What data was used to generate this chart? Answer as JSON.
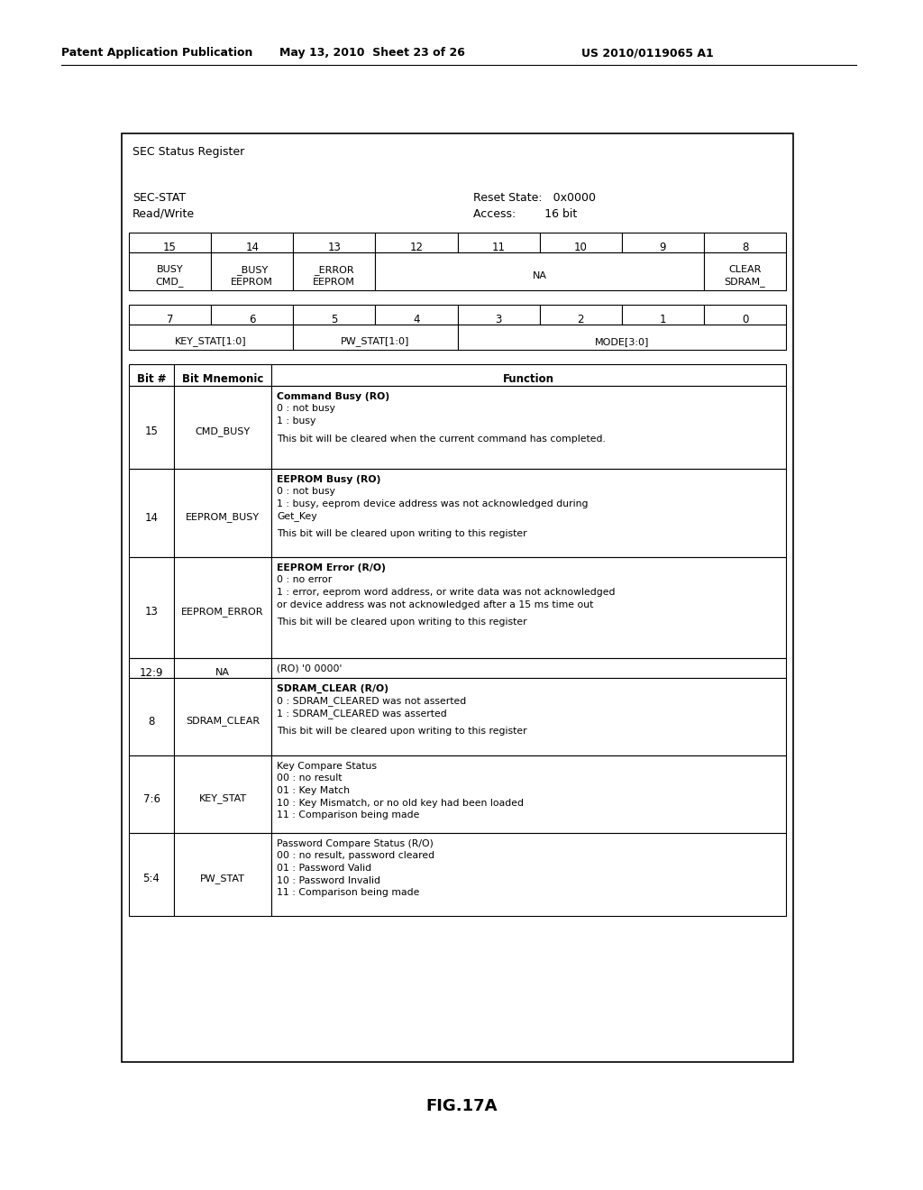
{
  "header_left": "Patent Application Publication",
  "header_middle": "May 13, 2010  Sheet 23 of 26",
  "header_right": "US 2010/0119065 A1",
  "register_title": "SEC Status Register",
  "reg_name": "SEC-STAT",
  "reg_type": "Read/Write",
  "reset_state_label": "Reset State:",
  "reset_state_value": "0x0000",
  "access_label": "Access:",
  "access_value": "16 bit",
  "bit_row1": [
    "15",
    "14",
    "13",
    "12",
    "11",
    "10",
    "9",
    "8"
  ],
  "bit_row2": [
    "7",
    "6",
    "5",
    "4",
    "3",
    "2",
    "1",
    "0"
  ],
  "name_row2": [
    "KEY_STAT[1:0]",
    "PW_STAT[1:0]",
    "MODE[3:0]"
  ],
  "name_row2_spans": [
    2,
    2,
    4
  ],
  "table_headers": [
    "Bit #",
    "Bit Mnemonic",
    "Function"
  ],
  "table_rows": [
    {
      "bit": "15",
      "mnemonic": "CMD_BUSY",
      "function_lines": [
        [
          "Command Busy (RO)",
          true
        ],
        [
          "0 : not busy",
          false
        ],
        [
          "1 : busy",
          false
        ],
        [
          "",
          false
        ],
        [
          "This bit will be cleared when the current command has completed.",
          false
        ]
      ]
    },
    {
      "bit": "14",
      "mnemonic": "EEPROM_BUSY",
      "function_lines": [
        [
          "EEPROM Busy (RO)",
          true
        ],
        [
          "0 : not busy",
          false
        ],
        [
          "1 : busy, eeprom device address was not acknowledged during",
          false
        ],
        [
          "Get_Key",
          false
        ],
        [
          "",
          false
        ],
        [
          "This bit will be cleared upon writing to this register",
          false
        ]
      ]
    },
    {
      "bit": "13",
      "mnemonic": "EEPROM_ERROR",
      "function_lines": [
        [
          "EEPROM Error (R/O)",
          true
        ],
        [
          "0 : no error",
          false
        ],
        [
          "1 : error, eeprom word address, or write data was not acknowledged",
          false
        ],
        [
          "or device address was not acknowledged after a 15 ms time out",
          false
        ],
        [
          "",
          false
        ],
        [
          "This bit will be cleared upon writing to this register",
          false
        ]
      ]
    },
    {
      "bit": "12:9",
      "mnemonic": "NA",
      "function_lines": [
        [
          "(RO) '0 0000'",
          false
        ]
      ]
    },
    {
      "bit": "8",
      "mnemonic": "SDRAM_CLEAR",
      "function_lines": [
        [
          "SDRAM_CLEAR (R/O)",
          true
        ],
        [
          "0 : SDRAM_CLEARED was not asserted",
          false
        ],
        [
          "1 : SDRAM_CLEARED was asserted",
          false
        ],
        [
          "",
          false
        ],
        [
          "This bit will be cleared upon writing to this register",
          false
        ]
      ]
    },
    {
      "bit": "7:6",
      "mnemonic": "KEY_STAT",
      "function_lines": [
        [
          "Key Compare Status",
          false
        ],
        [
          "00 : no result",
          false
        ],
        [
          "01 : Key Match",
          false
        ],
        [
          "10 : Key Mismatch, or no old key had been loaded",
          false
        ],
        [
          "11 : Comparison being made",
          false
        ]
      ]
    },
    {
      "bit": "5:4",
      "mnemonic": "PW_STAT",
      "function_lines": [
        [
          "Password Compare Status (R/O)",
          false
        ],
        [
          "00 : no result, password cleared",
          false
        ],
        [
          "01 : Password Valid",
          false
        ],
        [
          "10 : Password Invalid",
          false
        ],
        [
          "11 : Comparison being made",
          false
        ]
      ]
    }
  ],
  "figure_label": "FIG.17A",
  "bg_color": "#ffffff"
}
